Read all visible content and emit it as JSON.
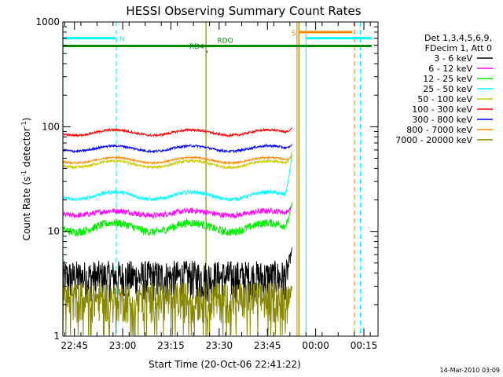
{
  "chart_data": {
    "type": "line",
    "title": "HESSI Observing Summary Count Rates",
    "xlabel": "Start Time (20-Oct-06 22:41:22)",
    "ylabel_main": "Count Rate (s",
    "ylabel_sup1": "-1",
    "ylabel_mid": " detector",
    "ylabel_sup2": "-1",
    "ylabel_end": ")",
    "y_scale": "log",
    "xlim_minutes": [
      0,
      98
    ],
    "ylim": [
      1,
      1000
    ],
    "x_ticks": [
      {
        "label": "22:45",
        "value": 3.6
      },
      {
        "label": "23:00",
        "value": 18.6
      },
      {
        "label": "23:15",
        "value": 33.6
      },
      {
        "label": "23:30",
        "value": 48.6
      },
      {
        "label": "23:45",
        "value": 63.6
      },
      {
        "label": "00:00",
        "value": 78.6
      },
      {
        "label": "00:15",
        "value": 93.6
      }
    ],
    "y_ticks": [
      {
        "label": "1",
        "value": 1
      },
      {
        "label": "10",
        "value": 10
      },
      {
        "label": "100",
        "value": 100
      },
      {
        "label": "1000",
        "value": 1000
      }
    ],
    "legend": {
      "placement": "right",
      "header": [
        "Det 1,3,4,5,6,9,",
        "FDecim 1, Att 0"
      ]
    },
    "series": [
      {
        "name": "3 - 6 keV",
        "color": "#000000",
        "base": 3.5,
        "wave": 0.0,
        "jitter": 0.2,
        "end_spike": 7
      },
      {
        "name": "6 - 12 keV",
        "color": "#ff00ff",
        "base": 15,
        "wave": 0.05,
        "jitter": 0.06,
        "end_spike": 18
      },
      {
        "name": "12 - 25 keV",
        "color": "#00ee00",
        "base": 11,
        "wave": 0.1,
        "jitter": 0.09,
        "end_spike": 19
      },
      {
        "name": "25 - 50 keV",
        "color": "#00ffff",
        "base": 22,
        "wave": 0.08,
        "jitter": 0.04,
        "end_spike": 55
      },
      {
        "name": "50 - 100 keV",
        "color": "#cccc00",
        "base": 44,
        "wave": 0.07,
        "jitter": 0.03,
        "end_spike": 58
      },
      {
        "name": "100 - 300 keV",
        "color": "#ff0000",
        "base": 88,
        "wave": 0.06,
        "jitter": 0.025,
        "end_spike": 98
      },
      {
        "name": "300 - 800 keV",
        "color": "#0000ff",
        "base": 62,
        "wave": 0.06,
        "jitter": 0.025,
        "end_spike": 68
      },
      {
        "name": "800 - 7000 keV",
        "color": "#ff8800",
        "base": 48,
        "wave": 0.06,
        "jitter": 0.02,
        "end_spike": 52
      },
      {
        "name": "7000 - 20000 keV",
        "color": "#888800",
        "base": 2.2,
        "wave": 0.0,
        "jitter": 0.3,
        "end_spike": 3
      }
    ],
    "flag_bars": [
      {
        "label": "N",
        "color": "#00ffff",
        "y_value": 700,
        "x_start": 0,
        "x_end": 16.6
      },
      {
        "label": "",
        "color": "#00ffff",
        "y_value": 700,
        "x_start": 75.6,
        "x_end": 96
      },
      {
        "label": "S",
        "color": "#ff8800",
        "y_value": 800,
        "x_start": 73.4,
        "x_end": 90
      },
      {
        "label": "RDO",
        "color": "#008800",
        "y_value": 590,
        "x_start": 0,
        "x_end": 96
      },
      {
        "label": "RD4",
        "color": "#008800",
        "y_value": 520,
        "x_start": 44.7,
        "x_end": 45.0
      }
    ],
    "vertical_markers": [
      {
        "type": "solid",
        "color": "#00ffff",
        "x": 0
      },
      {
        "type": "dashed",
        "color": "#00ffff",
        "x": 16.6
      },
      {
        "type": "solid",
        "color": "#ff8800",
        "x": 72.8
      },
      {
        "type": "solid",
        "color": "#888800",
        "x": 73.4
      },
      {
        "type": "solid",
        "color": "#00ffff",
        "x": 75.6
      },
      {
        "type": "dashed",
        "color": "#ff8800",
        "x": 90.7
      },
      {
        "type": "dashed",
        "color": "#00ffff",
        "x": 92.5
      },
      {
        "type": "solid",
        "color": "#888800",
        "x": 44.5
      }
    ],
    "data_end_minute": 71.3,
    "timestamp": "14-Mar-2010 03:09"
  }
}
